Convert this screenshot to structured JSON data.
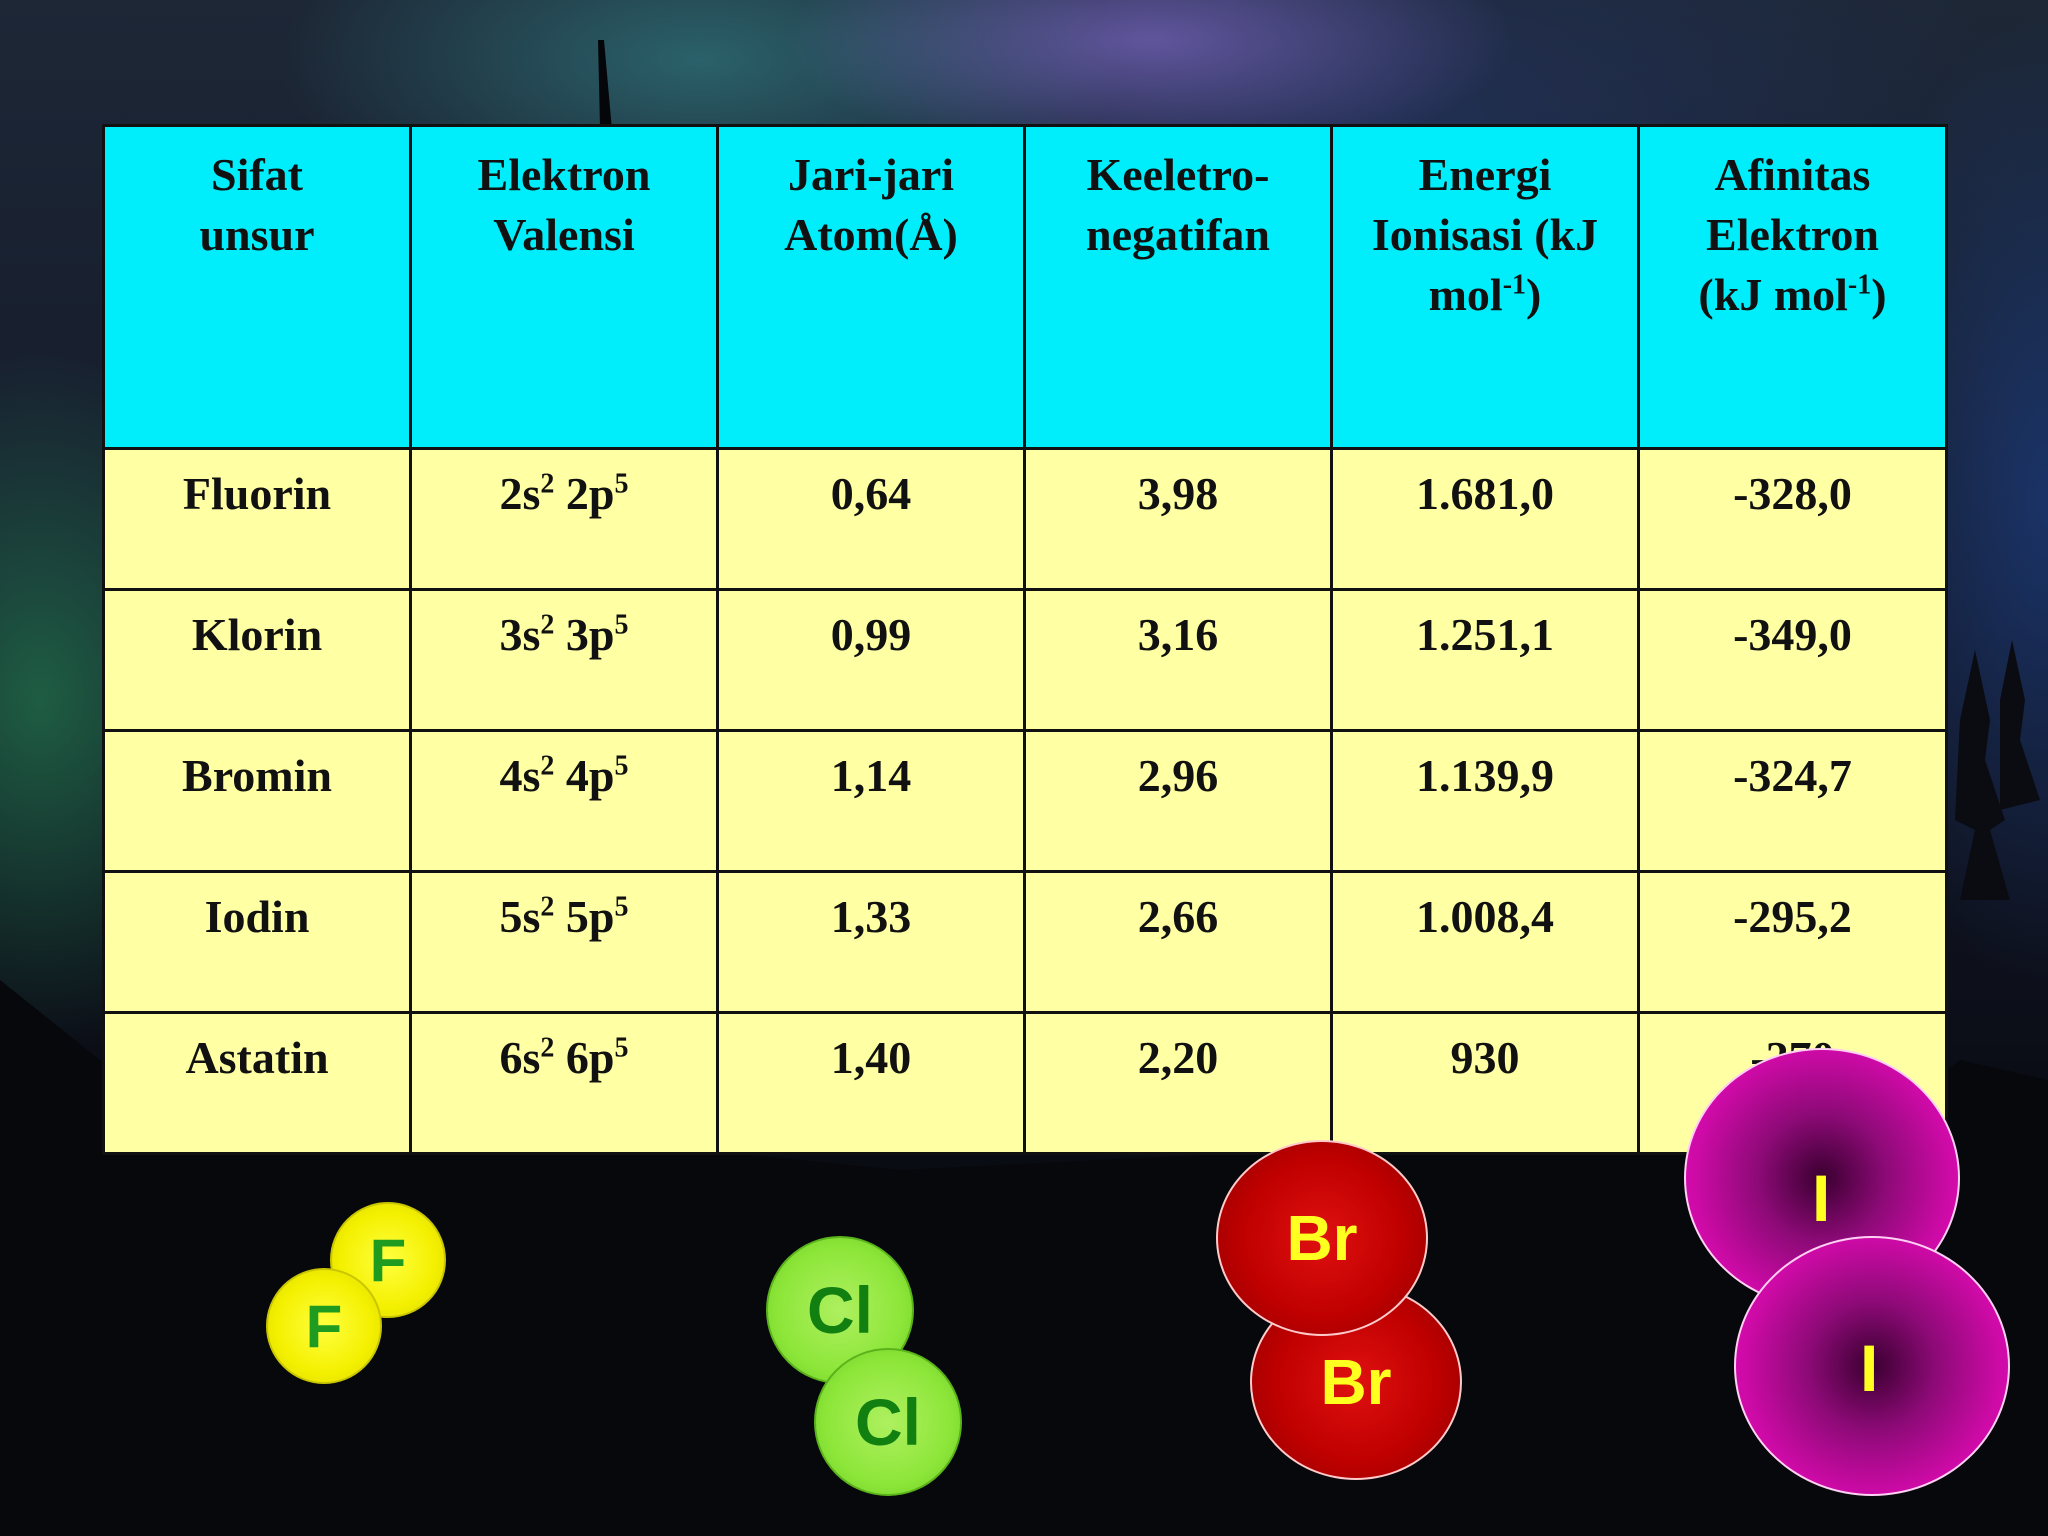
{
  "table": {
    "headers": [
      {
        "line1": "Sifat",
        "line2": "unsur",
        "line3": ""
      },
      {
        "line1": "Elektron",
        "line2": "Valensi",
        "line3": ""
      },
      {
        "line1": "Jari-jari",
        "line2": "Atom(Å)",
        "line3": ""
      },
      {
        "line1": "Keeletro-",
        "line2": "negatifan",
        "line3": ""
      },
      {
        "line1": "Energi",
        "line2": "Ionisasi (kJ",
        "line3": "mol",
        "sup": "-1",
        "line3_end": ")"
      },
      {
        "line1": "Afinitas",
        "line2": "Elektron",
        "line3": "(kJ mol",
        "sup": "-1",
        "line3_end": ")"
      }
    ],
    "rows": [
      {
        "unsur": "Fluorin",
        "valensi": {
          "a": "2s",
          "a_sup": "2",
          "b": " 2p",
          "b_sup": "5"
        },
        "jari_jari": "0,64",
        "keelektronegatifan": "3,98",
        "energi_ionisasi": "1.681,0",
        "afinitas": "-328,0"
      },
      {
        "unsur": "Klorin",
        "valensi": {
          "a": "3s",
          "a_sup": "2",
          "b": " 3p",
          "b_sup": "5"
        },
        "jari_jari": "0,99",
        "keelektronegatifan": "3,16",
        "energi_ionisasi": "1.251,1",
        "afinitas": "-349,0"
      },
      {
        "unsur": "Bromin",
        "valensi": {
          "a": "4s",
          "a_sup": "2",
          "b": " 4p",
          "b_sup": "5"
        },
        "jari_jari": "1,14",
        "keelektronegatifan": "2,96",
        "energi_ionisasi": "1.139,9",
        "afinitas": "-324,7"
      },
      {
        "unsur": "Iodin",
        "valensi": {
          "a": "5s",
          "a_sup": "2",
          "b": " 5p",
          "b_sup": "5"
        },
        "jari_jari": "1,33",
        "keelektronegatifan": "2,66",
        "energi_ionisasi": "1.008,4",
        "afinitas": "-295,2"
      },
      {
        "unsur": "Astatin",
        "valensi": {
          "a": "6s",
          "a_sup": "2",
          "b": " 6p",
          "b_sup": "5"
        },
        "jari_jari": "1,40",
        "keelektronegatifan": "2,20",
        "energi_ionisasi": "930",
        "afinitas": "-270"
      }
    ]
  },
  "molecules": {
    "fluorine": [
      "F",
      "F"
    ],
    "chlorine": [
      "Cl",
      "Cl"
    ],
    "bromine": [
      "Br",
      "Br"
    ],
    "iodine": [
      "I",
      "I"
    ]
  },
  "colors": {
    "header_bg": "#00eefc",
    "cell_bg": "#ffffa3",
    "fluorine": "#f4f000",
    "chlorine": "#8ee63a",
    "bromine": "#c00000",
    "iodine": "#d00aa8",
    "atom_label_yellow": "#ffff20",
    "atom_label_green": "#1f9c1f"
  }
}
